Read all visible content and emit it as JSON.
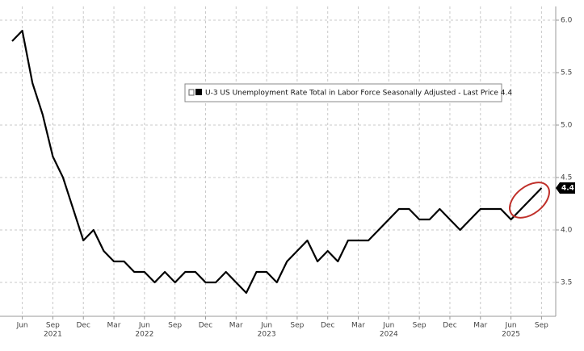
{
  "chart_data": {
    "type": "line",
    "x": [
      "2021-05",
      "2021-06",
      "2021-07",
      "2021-08",
      "2021-09",
      "2021-10",
      "2021-11",
      "2021-12",
      "2022-01",
      "2022-02",
      "2022-03",
      "2022-04",
      "2022-05",
      "2022-06",
      "2022-07",
      "2022-08",
      "2022-09",
      "2022-10",
      "2022-11",
      "2022-12",
      "2023-01",
      "2023-02",
      "2023-03",
      "2023-04",
      "2023-05",
      "2023-06",
      "2023-07",
      "2023-08",
      "2023-09",
      "2023-10",
      "2023-11",
      "2023-12",
      "2024-01",
      "2024-02",
      "2024-03",
      "2024-04",
      "2024-05",
      "2024-06",
      "2024-07",
      "2024-08",
      "2024-09",
      "2024-10",
      "2024-11",
      "2024-12",
      "2025-01",
      "2025-02",
      "2025-03",
      "2025-04",
      "2025-05",
      "2025-06",
      "2025-07",
      "2025-08",
      "2025-09"
    ],
    "series": [
      {
        "name": "U-3 US Unemployment Rate Total in Labor Force Seasonally Adjusted - Last Price 4.4",
        "color": "#000000",
        "values": [
          5.8,
          5.9,
          5.4,
          5.1,
          4.7,
          4.5,
          4.2,
          3.9,
          4.0,
          3.8,
          3.7,
          3.7,
          3.6,
          3.6,
          3.5,
          3.6,
          3.5,
          3.6,
          3.6,
          3.5,
          3.5,
          3.6,
          3.5,
          3.4,
          3.6,
          3.6,
          3.5,
          3.7,
          3.8,
          3.9,
          3.7,
          3.8,
          3.7,
          3.9,
          3.9,
          3.9,
          4.0,
          4.1,
          4.2,
          4.2,
          4.1,
          4.1,
          4.2,
          4.1,
          4.0,
          4.1,
          4.2,
          4.2,
          4.2,
          4.1,
          4.2,
          4.3,
          4.4
        ]
      }
    ],
    "last_value": 4.4,
    "xlim": [
      "2021-05",
      "2025-10"
    ],
    "xticks": [
      {
        "value": "2021-06",
        "label": "Jun"
      },
      {
        "value": "2021-09",
        "label": "Sep"
      },
      {
        "value": "2021-12",
        "label": "Dec"
      },
      {
        "value": "2022-03",
        "label": "Mar"
      },
      {
        "value": "2022-06",
        "label": "Jun"
      },
      {
        "value": "2022-09",
        "label": "Sep"
      },
      {
        "value": "2022-12",
        "label": "Dec"
      },
      {
        "value": "2023-03",
        "label": "Mar"
      },
      {
        "value": "2023-06",
        "label": "Jun"
      },
      {
        "value": "2023-09",
        "label": "Sep"
      },
      {
        "value": "2023-12",
        "label": "Dec"
      },
      {
        "value": "2024-03",
        "label": "Mar"
      },
      {
        "value": "2024-06",
        "label": "Jun"
      },
      {
        "value": "2024-09",
        "label": "Sep"
      },
      {
        "value": "2024-12",
        "label": "Dec"
      },
      {
        "value": "2025-03",
        "label": "Mar"
      },
      {
        "value": "2025-06",
        "label": "Jun"
      },
      {
        "value": "2025-09",
        "label": "Sep"
      }
    ],
    "year_labels": [
      {
        "value": "2021-09",
        "label": "2021"
      },
      {
        "value": "2022-06",
        "label": "2022"
      },
      {
        "value": "2023-06",
        "label": "2023"
      },
      {
        "value": "2024-06",
        "label": "2024"
      },
      {
        "value": "2025-06",
        "label": "2025"
      }
    ],
    "ylim": [
      3.2,
      6.1
    ],
    "yticks": [
      {
        "value": 3.5,
        "label": "3.5"
      },
      {
        "value": 4,
        "label": "4.0"
      },
      {
        "value": 4.5,
        "label": "4.5"
      },
      {
        "value": 5,
        "label": "5.0"
      },
      {
        "value": 5.5,
        "label": "5.5"
      },
      {
        "value": 6,
        "label": "6.0"
      }
    ],
    "grid": true
  }
}
